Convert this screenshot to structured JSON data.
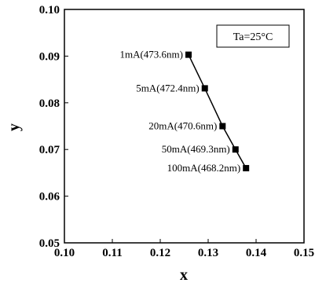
{
  "chart_data": {
    "type": "line",
    "xlabel": "x",
    "ylabel": "y",
    "xlim": [
      0.1,
      0.15
    ],
    "ylim": [
      0.05,
      0.1
    ],
    "x_ticks": [
      "0.10",
      "0.11",
      "0.12",
      "0.13",
      "0.14",
      "0.15"
    ],
    "y_ticks": [
      "0.05",
      "0.06",
      "0.07",
      "0.08",
      "0.09",
      "0.10"
    ],
    "grid": false,
    "annotation": "Ta=25°C",
    "series": [
      {
        "points": [
          {
            "x": 0.1259,
            "y": 0.0903,
            "label": "1mA(473.6nm)"
          },
          {
            "x": 0.1293,
            "y": 0.0831,
            "label": "5mA(472.4nm)"
          },
          {
            "x": 0.133,
            "y": 0.075,
            "label": "20mA(470.6nm)"
          },
          {
            "x": 0.1357,
            "y": 0.07,
            "label": "50mA(469.3nm)"
          },
          {
            "x": 0.1379,
            "y": 0.066,
            "label": "100mA(468.2nm)"
          }
        ]
      }
    ]
  }
}
